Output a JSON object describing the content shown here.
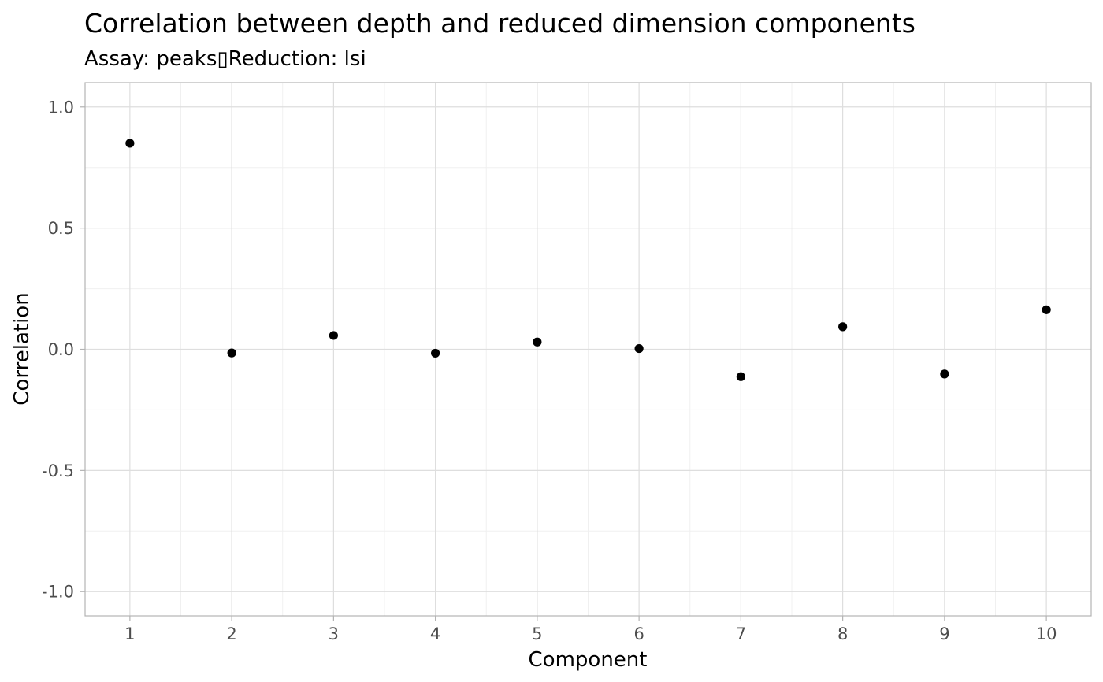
{
  "chart_data": {
    "type": "scatter",
    "title": "Correlation between depth and reduced dimension components",
    "subtitle": "Assay: peaks▯Reduction: lsi",
    "xlabel": "Component",
    "ylabel": "Correlation",
    "xlim": [
      0.56,
      10.44
    ],
    "ylim": [
      -1.1,
      1.1
    ],
    "x_ticks": [
      1,
      2,
      3,
      4,
      5,
      6,
      7,
      8,
      9,
      10
    ],
    "y_ticks": [
      -1.0,
      -0.5,
      0.0,
      0.5,
      1.0
    ],
    "y_tick_labels": [
      "-1.0",
      "-0.5",
      "0.0",
      "0.5",
      "1.0"
    ],
    "grid": true,
    "legend": "none",
    "point_color": "#000000",
    "points": [
      {
        "x": 1,
        "y": 0.85
      },
      {
        "x": 2,
        "y": -0.015
      },
      {
        "x": 3,
        "y": 0.057
      },
      {
        "x": 4,
        "y": -0.016
      },
      {
        "x": 5,
        "y": 0.03
      },
      {
        "x": 6,
        "y": 0.003
      },
      {
        "x": 7,
        "y": -0.113
      },
      {
        "x": 8,
        "y": 0.093
      },
      {
        "x": 9,
        "y": -0.102
      },
      {
        "x": 10,
        "y": 0.163
      }
    ]
  }
}
